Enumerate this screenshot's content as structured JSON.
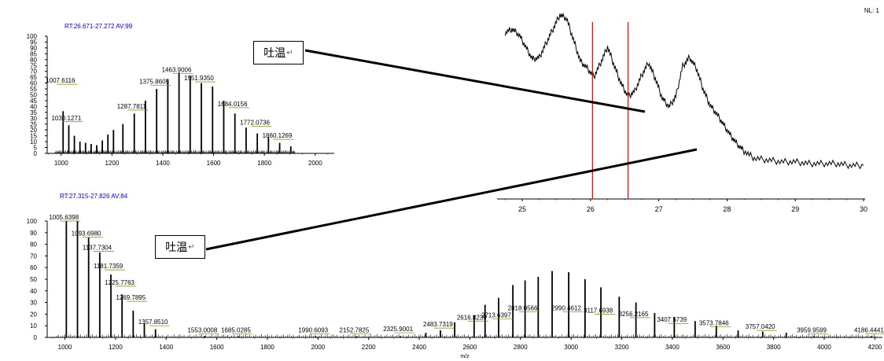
{
  "corner_note": "NL: 1",
  "callouts": {
    "top": {
      "text": "吐温",
      "mark": "↵"
    },
    "bottom": {
      "text": "吐温",
      "mark": "↵"
    }
  },
  "chart_data": [
    {
      "type": "bar",
      "kind": "mass-spectrum",
      "header": "RT:26.671-27.272 AV:99",
      "xlabel": "",
      "ylabel": "",
      "xlim": [
        945,
        2075
      ],
      "ylim": [
        0,
        100
      ],
      "x_ticks": [
        1000,
        1200,
        1400,
        1600,
        1800,
        2000
      ],
      "y_ticks": [
        0,
        5,
        10,
        15,
        20,
        25,
        30,
        35,
        40,
        45,
        50,
        55,
        60,
        65,
        70,
        75,
        80,
        85,
        90,
        95,
        100
      ],
      "peaks": [
        [
          1007.6116,
          36
        ],
        [
          1030.1271,
          24
        ],
        [
          1052,
          15
        ],
        [
          1074,
          10
        ],
        [
          1096,
          9
        ],
        [
          1118,
          8
        ],
        [
          1140,
          7
        ],
        [
          1162,
          11
        ],
        [
          1184,
          16
        ],
        [
          1206,
          20
        ],
        [
          1243,
          25
        ],
        [
          1287.7811,
          34
        ],
        [
          1331.8,
          45
        ],
        [
          1375.8605,
          55
        ],
        [
          1419.9,
          63
        ],
        [
          1463.9006,
          69
        ],
        [
          1507.9,
          66
        ],
        [
          1551.935,
          60
        ],
        [
          1596,
          57
        ],
        [
          1640,
          45
        ],
        [
          1684.0156,
          34
        ],
        [
          1728,
          22
        ],
        [
          1772.0736,
          17
        ],
        [
          1816,
          14
        ],
        [
          1860.1269,
          9
        ],
        [
          1904,
          6
        ]
      ],
      "labels": [
        {
          "mz": 1007.6116,
          "text": "1007.6116",
          "y": 59
        },
        {
          "mz": 1030.1271,
          "text": "1030.1271",
          "y": 27
        },
        {
          "mz": 1287.7811,
          "text": "1287.7811",
          "y": 37
        },
        {
          "mz": 1375.8605,
          "text": "1375.8605",
          "y": 58
        },
        {
          "mz": 1463.9006,
          "text": "1463.9006",
          "y": 68
        },
        {
          "mz": 1551.935,
          "text": "1551.9350",
          "y": 61
        },
        {
          "mz": 1684.0156,
          "text": "1684.0156",
          "y": 39
        },
        {
          "mz": 1772.0736,
          "text": "1772.0736",
          "y": 23
        },
        {
          "mz": 1860.1269,
          "text": "1860.1269",
          "y": 12
        }
      ]
    },
    {
      "type": "bar",
      "kind": "mass-spectrum",
      "header": "RT:27.315-27.826 AV:84",
      "xlabel": "m/z",
      "ylabel": "",
      "xlim": [
        930,
        4230
      ],
      "ylim": [
        0,
        100
      ],
      "x_ticks": [
        1000,
        1200,
        1400,
        1600,
        1800,
        2000,
        2200,
        2400,
        2600,
        2800,
        3000,
        3200,
        3400,
        3600,
        3800,
        4000,
        4200
      ],
      "y_ticks": [
        0,
        10,
        20,
        30,
        40,
        50,
        60,
        70,
        80,
        90,
        100
      ],
      "peaks": [
        [
          1005.6398,
          100
        ],
        [
          1049.7,
          100
        ],
        [
          1093.698,
          86
        ],
        [
          1137.7304,
          73
        ],
        [
          1181.7359,
          54
        ],
        [
          1225.7763,
          37
        ],
        [
          1269.7895,
          23
        ],
        [
          1313.8,
          12
        ],
        [
          1357.851,
          7
        ],
        [
          1553.0008,
          1
        ],
        [
          1685.0285,
          1
        ],
        [
          1990.6093,
          1
        ],
        [
          2152.7825,
          1
        ],
        [
          2325.9001,
          1
        ],
        [
          2426,
          4
        ],
        [
          2483.7319,
          6
        ],
        [
          2540,
          13
        ],
        [
          2616.8239,
          19
        ],
        [
          2660,
          28
        ],
        [
          2713.6397,
          34
        ],
        [
          2770,
          45
        ],
        [
          2818.0566,
          49
        ],
        [
          2870,
          52
        ],
        [
          2925,
          57
        ],
        [
          2990.4612,
          56
        ],
        [
          3055,
          50
        ],
        [
          3117.6938,
          43
        ],
        [
          3190,
          35
        ],
        [
          3256.2165,
          30
        ],
        [
          3330,
          21
        ],
        [
          3407.5739,
          17
        ],
        [
          3490,
          14
        ],
        [
          3573.7846,
          10
        ],
        [
          3660,
          6
        ],
        [
          3757.042,
          5
        ],
        [
          3850,
          4
        ],
        [
          3959.9599,
          1
        ],
        [
          4186.4441,
          1
        ]
      ],
      "labels": [
        {
          "mz": 1005.6398,
          "text": "1005.6398",
          "y": 100
        },
        {
          "mz": 1093.698,
          "text": "1093.6980",
          "y": 86
        },
        {
          "mz": 1137.7304,
          "text": "1137.7304",
          "y": 74
        },
        {
          "mz": 1181.7359,
          "text": "1181.7359",
          "y": 58
        },
        {
          "mz": 1225.7763,
          "text": "1225.7763",
          "y": 44
        },
        {
          "mz": 1269.7895,
          "text": "1269.7895",
          "y": 31
        },
        {
          "mz": 1357.851,
          "text": "1357.8510",
          "y": 10
        },
        {
          "mz": 1553.0008,
          "text": "1553.0008",
          "y": 3
        },
        {
          "mz": 1685.0285,
          "text": "1685.0285",
          "y": 3
        },
        {
          "mz": 1990.6093,
          "text": "1990.6093",
          "y": 3
        },
        {
          "mz": 2152.7825,
          "text": "2152.7825",
          "y": 3
        },
        {
          "mz": 2325.9001,
          "text": "2325.9001",
          "y": 4
        },
        {
          "mz": 2483.7319,
          "text": "2483.7319",
          "y": 8
        },
        {
          "mz": 2616.8239,
          "text": "2616.8239",
          "y": 14
        },
        {
          "mz": 2713.6397,
          "text": "2713.6397",
          "y": 16
        },
        {
          "mz": 2818.0566,
          "text": "2818.0566",
          "y": 22
        },
        {
          "mz": 2990.4612,
          "text": "2990.4612",
          "y": 22
        },
        {
          "mz": 3117.6938,
          "text": "3117.6938",
          "y": 20
        },
        {
          "mz": 3256.2165,
          "text": "3256.2165",
          "y": 17
        },
        {
          "mz": 3407.5739,
          "text": "3407.5739",
          "y": 12
        },
        {
          "mz": 3573.7846,
          "text": "3573.7846",
          "y": 9
        },
        {
          "mz": 3757.042,
          "text": "3757.0420",
          "y": 6
        },
        {
          "mz": 3959.9599,
          "text": "3959.9599",
          "y": 3
        },
        {
          "mz": 4186.4441,
          "text": "4186.4441",
          "y": 3
        }
      ]
    },
    {
      "type": "line",
      "kind": "chromatogram",
      "xlabel": "",
      "ylabel": "",
      "xlim": [
        24.7,
        30
      ],
      "ylim": [
        0,
        100
      ],
      "x_ticks": [
        25,
        26,
        27,
        28,
        29,
        30
      ],
      "markers": [
        26.03,
        26.55
      ],
      "marker_color": "#ff0000",
      "x": [
        24.75,
        24.85,
        24.95,
        25.05,
        25.15,
        25.25,
        25.35,
        25.45,
        25.55,
        25.65,
        25.75,
        25.85,
        25.95,
        26.05,
        26.15,
        26.25,
        26.35,
        26.45,
        26.55,
        26.65,
        26.75,
        26.85,
        26.95,
        27.05,
        27.15,
        27.25,
        27.35,
        27.45,
        27.55,
        27.65,
        27.75,
        27.85,
        27.95,
        28.05,
        28.15,
        28.25,
        28.4,
        28.6,
        28.8,
        29.0,
        29.2,
        29.4,
        29.6,
        29.8,
        30.0
      ],
      "y": [
        94,
        96,
        93,
        86,
        79,
        80,
        88,
        96,
        104,
        102,
        90,
        78,
        74,
        69,
        77,
        86,
        75,
        65,
        58,
        61,
        70,
        77,
        68,
        57,
        52,
        58,
        75,
        80,
        74,
        62,
        53,
        48,
        42,
        36,
        31,
        27,
        23,
        22,
        21,
        21,
        20,
        20,
        20,
        19,
        19
      ]
    }
  ]
}
